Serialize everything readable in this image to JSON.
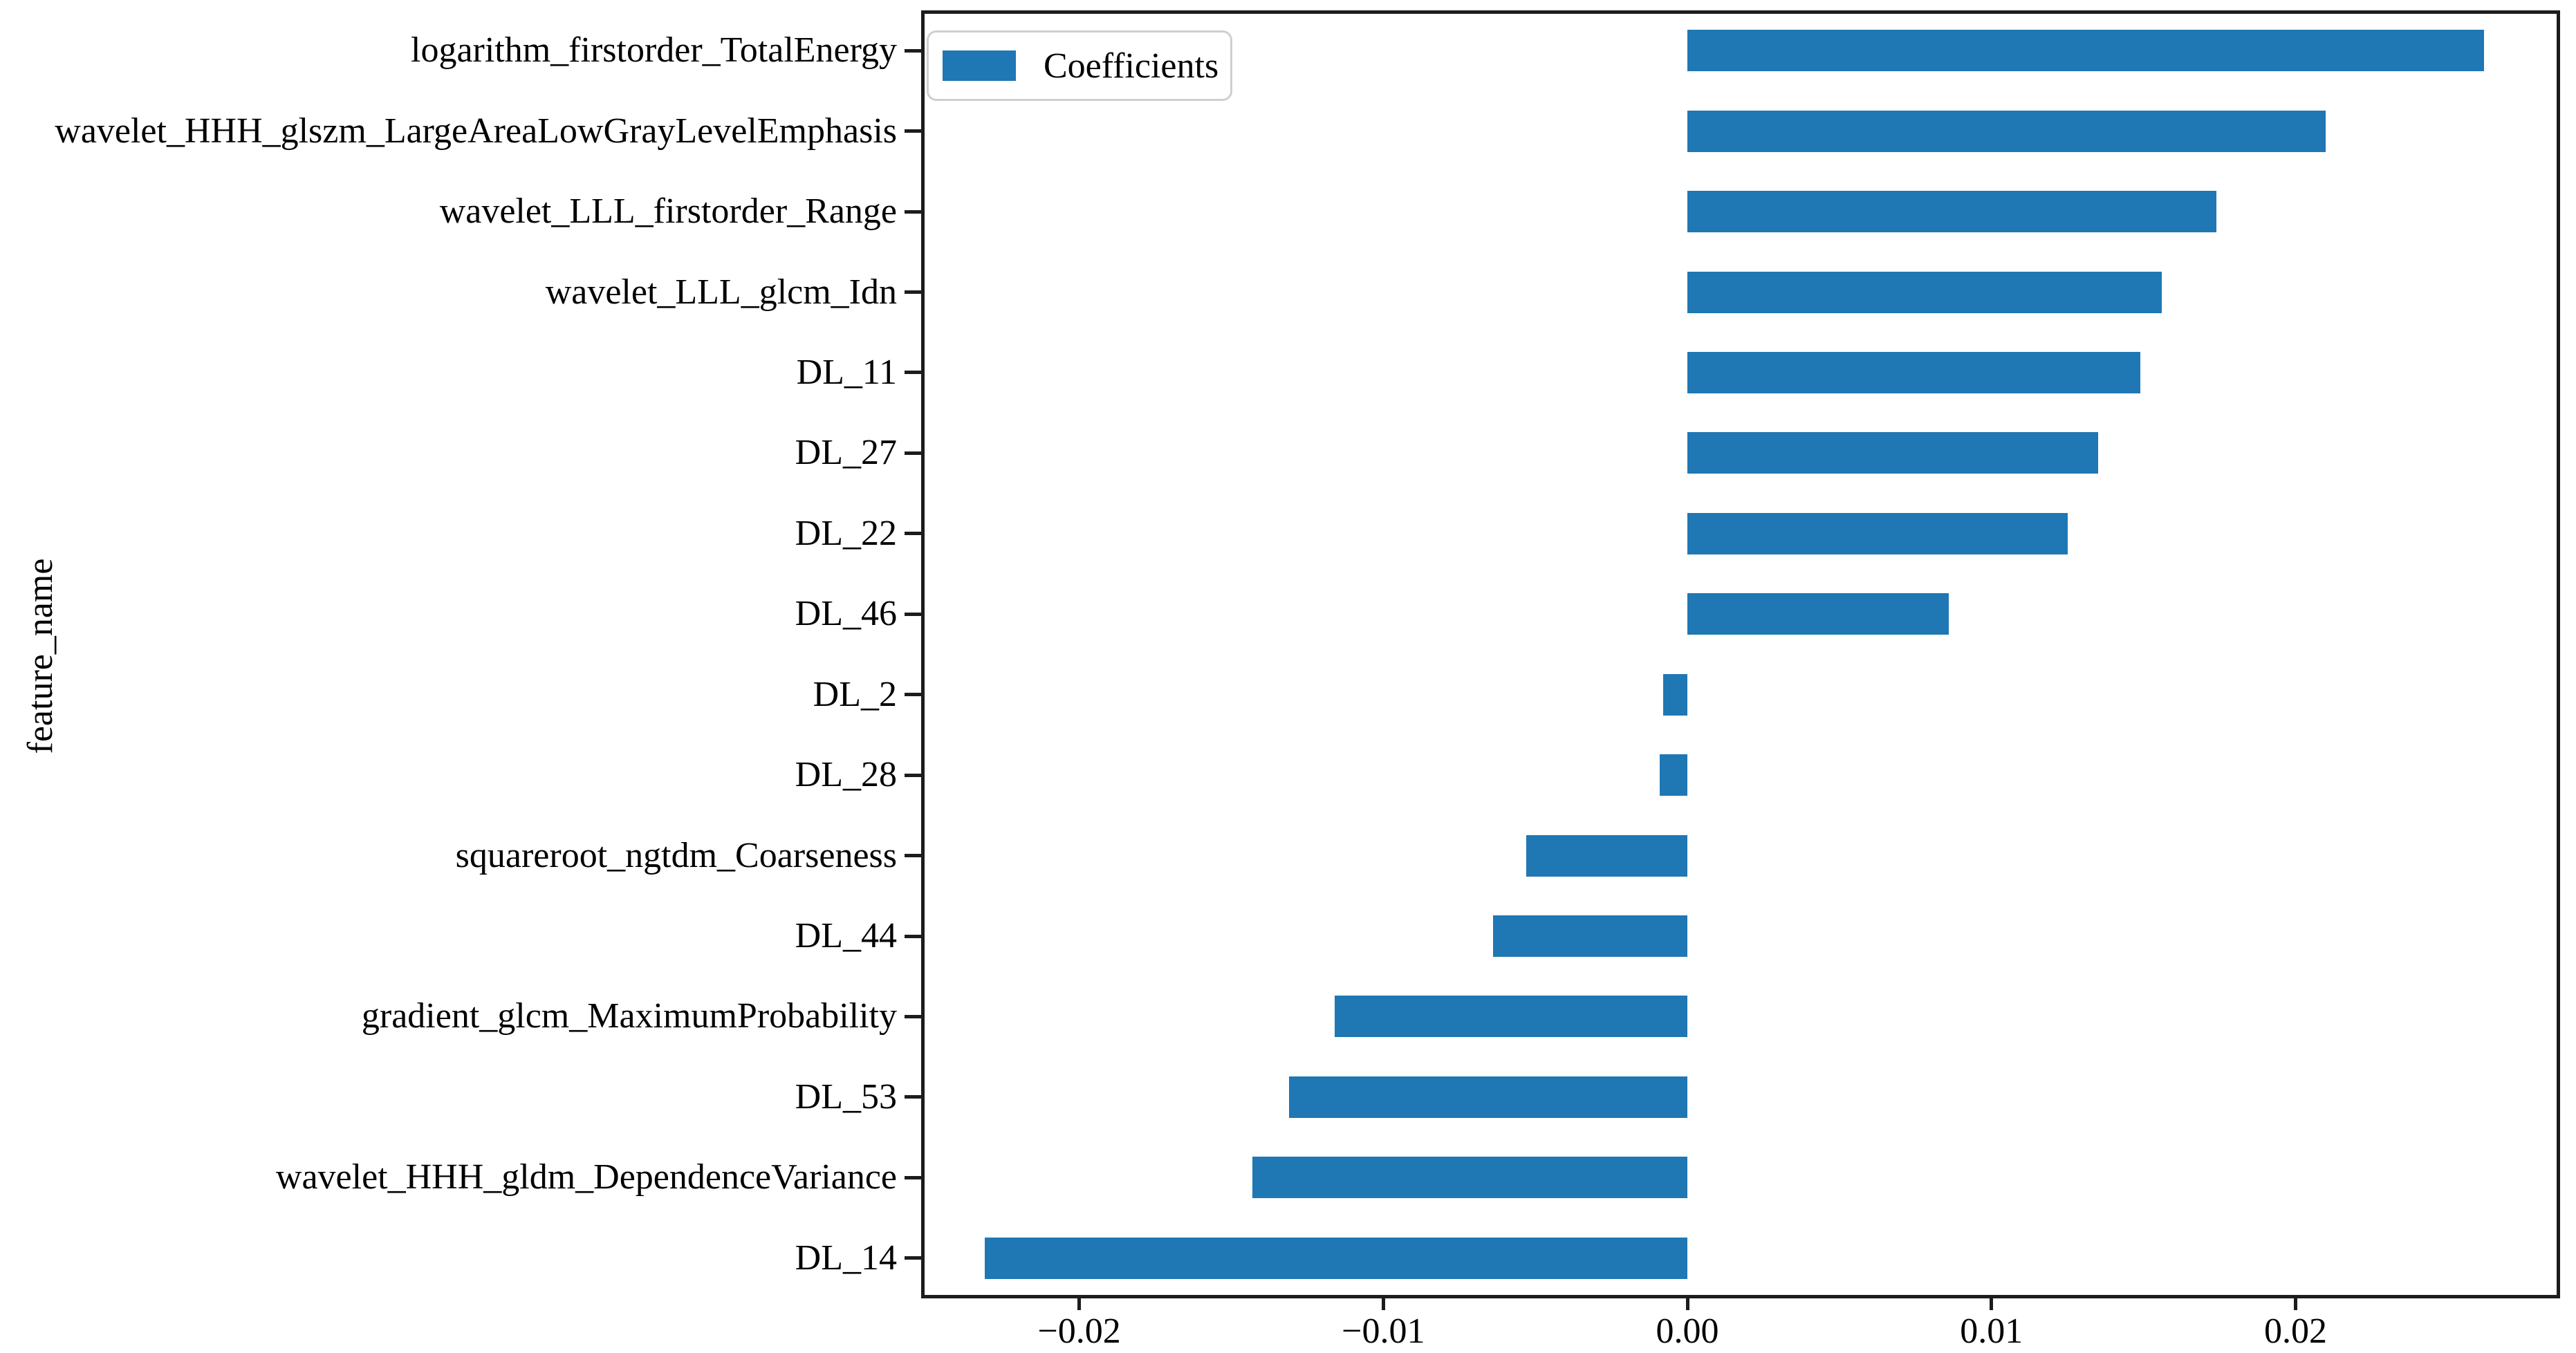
{
  "chart_data": {
    "type": "bar",
    "orientation": "horizontal",
    "title": "",
    "xlabel": "",
    "ylabel": "feature_name",
    "legend": {
      "entries": [
        "Coefficients"
      ],
      "position": "upper left",
      "swatch_color": "#1f77b4"
    },
    "categories": [
      "logarithm_firstorder_TotalEnergy",
      "wavelet_HHH_glszm_LargeAreaLowGrayLevelEmphasis",
      "wavelet_LLL_firstorder_Range",
      "wavelet_LLL_glcm_Idn",
      "DL_11",
      "DL_27",
      "DL_22",
      "DL_46",
      "DL_2",
      "DL_28",
      "squareroot_ngtdm_Coarseness",
      "DL_44",
      "gradient_glcm_MaximumProbability",
      "DL_53",
      "wavelet_HHH_gldm_DependenceVariance",
      "DL_14"
    ],
    "values": [
      0.0262,
      0.021,
      0.0174,
      0.0156,
      0.0149,
      0.0135,
      0.0125,
      0.0086,
      -0.0008,
      -0.0009,
      -0.0053,
      -0.0064,
      -0.0116,
      -0.0131,
      -0.0143,
      -0.0231
    ],
    "xlim": [
      -0.0252,
      0.0287
    ],
    "xticks": {
      "values": [
        -0.02,
        -0.01,
        0.0,
        0.01,
        0.02
      ],
      "labels": [
        "−0.02",
        "−0.01",
        "0.00",
        "0.01",
        "0.02"
      ]
    },
    "bar_color": "#1f77b4",
    "grid": false
  }
}
